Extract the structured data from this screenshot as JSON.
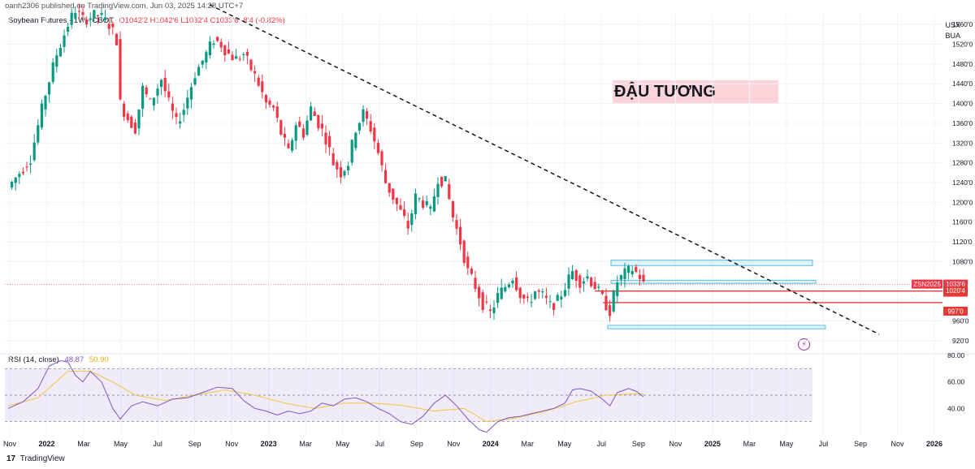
{
  "header": {
    "published": "oanh2306 published on TradingView.com, Jun 03, 2025 14:28 UTC+7",
    "symbol": "Soybean Futures · 1W · CBOT",
    "ohlc": "O1042'2 H1042'6 L1032'4 C1033'6 -8'4 (-0.82%)"
  },
  "unit": {
    "line1": "USX",
    "line2": "BUA"
  },
  "annotation_title": "ĐẬU TƯƠNG",
  "rsi_legend": {
    "label": "RSI (14, close)",
    "rsi_value": "48.87",
    "ma_value": "50.90"
  },
  "footer": {
    "logo": "17",
    "brand": "TradingView"
  },
  "colors": {
    "up": "#089981",
    "down": "#f23645",
    "rsi": "#7e57c2",
    "rsi_ma": "#f5c342",
    "zone": "#5bc0de",
    "support": "#e53935"
  },
  "icons": {
    "footer_logo": "tradingview-logo-icon",
    "alert": "lightning-icon"
  },
  "chart_data": {
    "type": "candlestick",
    "price_axis": {
      "min": 9000,
      "max": 15800,
      "ticks": [
        15600,
        15200,
        14800,
        14400,
        14000,
        13600,
        13200,
        12800,
        12400,
        12000,
        11600,
        11200,
        10800,
        9600,
        9200
      ],
      "labels": [
        "1560'0",
        "1520'0",
        "1480'0",
        "1440'0",
        "1400'0",
        "1360'0",
        "1320'0",
        "1280'0",
        "1240'0",
        "1200'0",
        "1160'0",
        "1120'0",
        "1080'0",
        "960'0",
        "920'0"
      ]
    },
    "time_axis": [
      "Nov",
      "2022",
      "Mar",
      "May",
      "Jul",
      "Sep",
      "Nov",
      "2023",
      "Mar",
      "May",
      "Jul",
      "Sep",
      "Nov",
      "2024",
      "Mar",
      "May",
      "Jul",
      "Sep",
      "Nov",
      "2025",
      "Mar",
      "May",
      "Jul",
      "Sep",
      "Nov",
      "2026"
    ],
    "price_tags": [
      {
        "label": "ZSN2025",
        "kind": "symbol"
      },
      {
        "label": "1033'6",
        "kind": "last"
      },
      {
        "label": "3d 12h",
        "kind": "countdown"
      },
      {
        "label": "1020'4",
        "kind": "level"
      },
      {
        "label": "997'0",
        "kind": "level"
      }
    ],
    "levels": {
      "zone_top": [
        10720,
        10830
      ],
      "zone_mid": [
        10360,
        10420
      ],
      "zone_bottom": [
        9440,
        9510
      ],
      "resistance_line": 10204,
      "support_line": 9970,
      "last_price": 10336
    },
    "trendline": {
      "start": {
        "x_index": 0.214,
        "y": 16000
      },
      "end": {
        "x_index": 0.9,
        "y": 9330
      }
    },
    "series": [
      {
        "name": "weekly-close",
        "anchors": [
          [
            0,
            12300
          ],
          [
            6,
            12900
          ],
          [
            10,
            14200
          ],
          [
            13,
            15000
          ],
          [
            16,
            15600
          ],
          [
            18,
            15900
          ],
          [
            20,
            15700
          ],
          [
            24,
            15800
          ],
          [
            27,
            15600
          ],
          [
            29,
            15300
          ],
          [
            30,
            14000
          ],
          [
            32,
            13700
          ],
          [
            34,
            13500
          ],
          [
            36,
            14300
          ],
          [
            38,
            14000
          ],
          [
            41,
            14500
          ],
          [
            43,
            14000
          ],
          [
            45,
            13600
          ],
          [
            47,
            13900
          ],
          [
            50,
            14600
          ],
          [
            53,
            15000
          ],
          [
            55,
            15300
          ],
          [
            57,
            15200
          ],
          [
            59,
            15000
          ],
          [
            61,
            14900
          ],
          [
            63,
            15000
          ],
          [
            65,
            14700
          ],
          [
            67,
            14400
          ],
          [
            69,
            14000
          ],
          [
            71,
            13900
          ],
          [
            73,
            13400
          ],
          [
            75,
            13000
          ],
          [
            77,
            13600
          ],
          [
            79,
            13400
          ],
          [
            81,
            13900
          ],
          [
            83,
            13600
          ],
          [
            85,
            13300
          ],
          [
            87,
            12800
          ],
          [
            89,
            12600
          ],
          [
            91,
            12800
          ],
          [
            93,
            13500
          ],
          [
            95,
            13800
          ],
          [
            97,
            13500
          ],
          [
            99,
            13000
          ],
          [
            101,
            12400
          ],
          [
            103,
            12100
          ],
          [
            105,
            11800
          ],
          [
            107,
            11500
          ],
          [
            109,
            12100
          ],
          [
            111,
            12000
          ],
          [
            113,
            11800
          ],
          [
            115,
            12500
          ],
          [
            117,
            12400
          ],
          [
            119,
            11700
          ],
          [
            121,
            11200
          ],
          [
            123,
            10600
          ],
          [
            125,
            10300
          ],
          [
            127,
            9950
          ],
          [
            129,
            9750
          ],
          [
            131,
            10100
          ],
          [
            133,
            10300
          ],
          [
            135,
            10500
          ],
          [
            137,
            10150
          ],
          [
            139,
            9950
          ],
          [
            141,
            10200
          ],
          [
            143,
            10100
          ],
          [
            145,
            9900
          ],
          [
            147,
            10000
          ],
          [
            149,
            10300
          ],
          [
            151,
            10600
          ],
          [
            153,
            10400
          ],
          [
            155,
            10500
          ],
          [
            157,
            10300
          ],
          [
            159,
            10050
          ],
          [
            161,
            9800
          ],
          [
            163,
            10400
          ],
          [
            165,
            10550
          ],
          [
            167,
            10650
          ],
          [
            169,
            10500
          ],
          [
            170,
            10336
          ]
        ]
      }
    ],
    "rsi": {
      "range": [
        20,
        80
      ],
      "ticks": [
        80,
        60,
        40,
        20
      ],
      "tick_labels": [
        "80.00",
        "60.00",
        "40.00",
        ""
      ],
      "levels": [
        70,
        50,
        30
      ],
      "rsi_anchors": [
        [
          0,
          40
        ],
        [
          4,
          45
        ],
        [
          8,
          55
        ],
        [
          11,
          72
        ],
        [
          14,
          76
        ],
        [
          16,
          75
        ],
        [
          18,
          65
        ],
        [
          20,
          60
        ],
        [
          22,
          68
        ],
        [
          25,
          60
        ],
        [
          28,
          40
        ],
        [
          30,
          32
        ],
        [
          33,
          42
        ],
        [
          36,
          45
        ],
        [
          40,
          42
        ],
        [
          44,
          47
        ],
        [
          48,
          48
        ],
        [
          52,
          52
        ],
        [
          56,
          56
        ],
        [
          60,
          55
        ],
        [
          63,
          46
        ],
        [
          66,
          40
        ],
        [
          69,
          38
        ],
        [
          72,
          35
        ],
        [
          75,
          38
        ],
        [
          78,
          36
        ],
        [
          81,
          38
        ],
        [
          84,
          44
        ],
        [
          87,
          42
        ],
        [
          90,
          47
        ],
        [
          93,
          48
        ],
        [
          96,
          45
        ],
        [
          99,
          40
        ],
        [
          102,
          36
        ],
        [
          105,
          30
        ],
        [
          108,
          28
        ],
        [
          111,
          34
        ],
        [
          114,
          44
        ],
        [
          117,
          50
        ],
        [
          120,
          42
        ],
        [
          123,
          32
        ],
        [
          126,
          24
        ],
        [
          128,
          22
        ],
        [
          131,
          30
        ],
        [
          134,
          33
        ],
        [
          137,
          34
        ],
        [
          140,
          36
        ],
        [
          143,
          38
        ],
        [
          146,
          40
        ],
        [
          149,
          44
        ],
        [
          151,
          54
        ],
        [
          153,
          55
        ],
        [
          156,
          53
        ],
        [
          159,
          47
        ],
        [
          161,
          42
        ],
        [
          163,
          52
        ],
        [
          166,
          55
        ],
        [
          168,
          53
        ],
        [
          170,
          48.87
        ]
      ],
      "ma_anchors": [
        [
          0,
          42
        ],
        [
          8,
          48
        ],
        [
          16,
          68
        ],
        [
          22,
          68
        ],
        [
          28,
          60
        ],
        [
          34,
          50
        ],
        [
          42,
          46
        ],
        [
          50,
          50
        ],
        [
          58,
          54
        ],
        [
          66,
          50
        ],
        [
          74,
          44
        ],
        [
          82,
          40
        ],
        [
          90,
          44
        ],
        [
          98,
          44
        ],
        [
          106,
          42
        ],
        [
          114,
          38
        ],
        [
          122,
          40
        ],
        [
          128,
          30
        ],
        [
          136,
          33
        ],
        [
          144,
          38
        ],
        [
          152,
          45
        ],
        [
          160,
          50
        ],
        [
          168,
          51
        ],
        [
          170,
          50.9
        ]
      ]
    }
  }
}
